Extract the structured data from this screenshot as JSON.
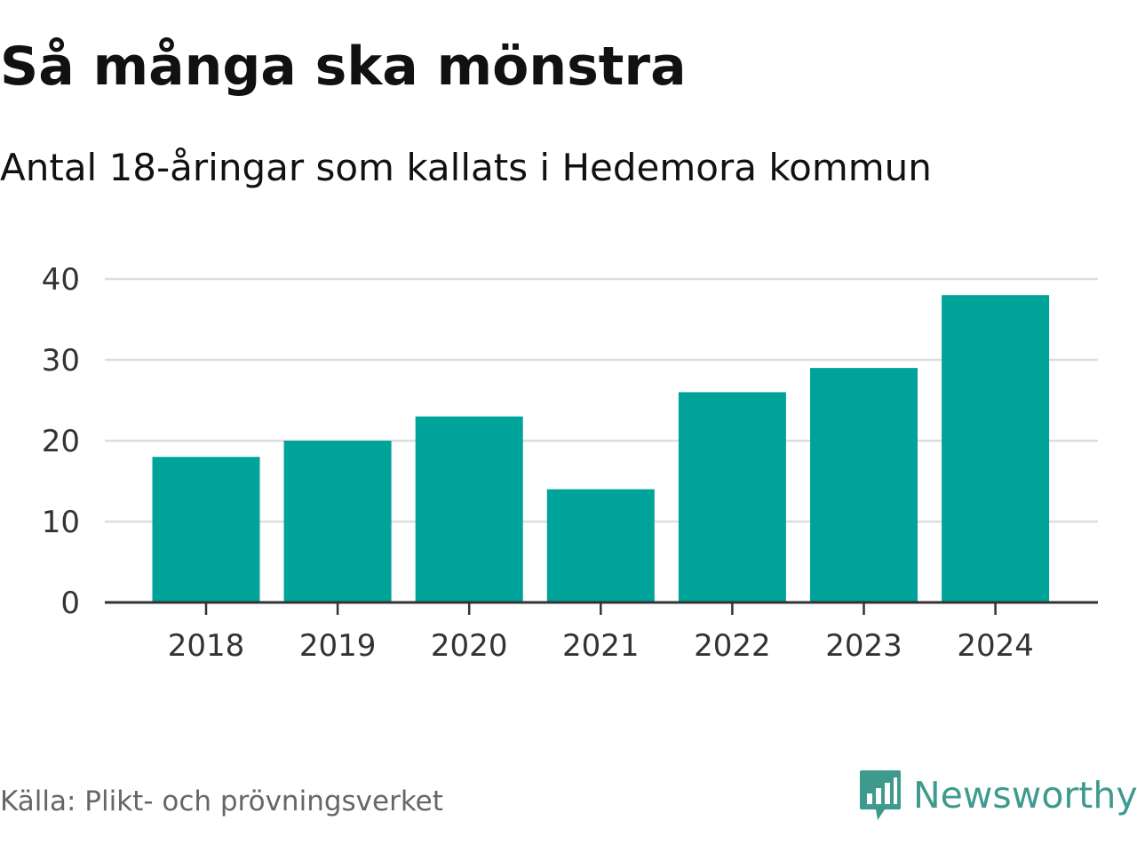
{
  "title": "Så många ska mönstra",
  "subtitle": "Antal 18-åringar som kallats i Hedemora kommun",
  "source": "Källa: Plikt- och prövningsverket",
  "brand": {
    "name": "Newsworthy",
    "icon": "newsworthy-logo-icon",
    "color": "#3f9a8e"
  },
  "colors": {
    "bar": "#00a39a",
    "grid": "#dddddd",
    "axis": "#333333"
  },
  "chart_data": {
    "type": "bar",
    "title": "Så många ska mönstra",
    "subtitle": "Antal 18-åringar som kallats i Hedemora kommun",
    "categories": [
      "2018",
      "2019",
      "2020",
      "2021",
      "2022",
      "2023",
      "2024"
    ],
    "values": [
      18,
      20,
      23,
      14,
      26,
      29,
      38
    ],
    "xlabel": "",
    "ylabel": "",
    "ylim": [
      0,
      40
    ],
    "yticks": [
      0,
      10,
      20,
      30,
      40
    ],
    "grid": true,
    "legend": "none"
  }
}
